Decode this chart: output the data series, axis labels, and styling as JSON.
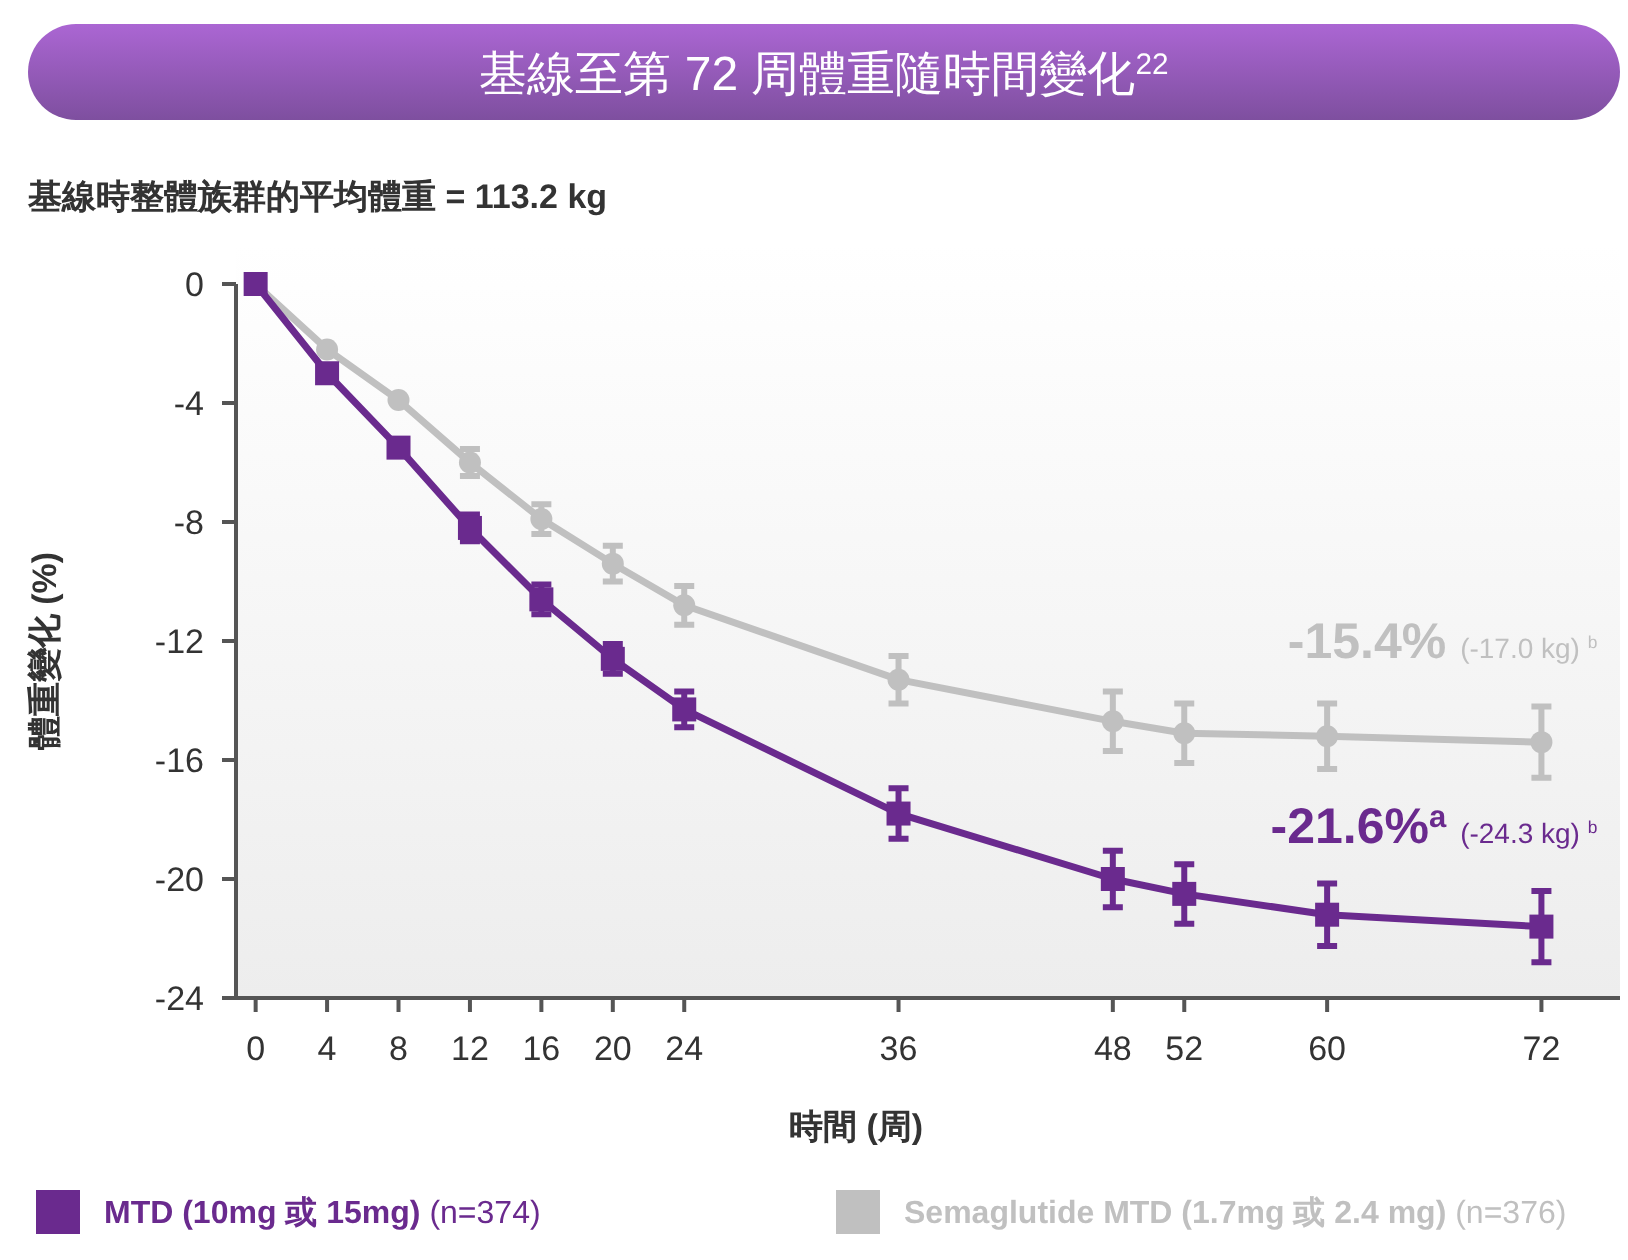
{
  "chart_data": {
    "type": "line",
    "title": "基線至第 72 周體重隨時間變化$^{22}$",
    "subtitle": "基線時整體族群的平均體重 = 113.2 kg",
    "xlabel": "時間 (周)",
    "ylabel": "體重變化 (%)",
    "x": [
      0,
      4,
      8,
      12,
      16,
      20,
      24,
      36,
      48,
      52,
      60,
      72
    ],
    "series": [
      {
        "name": "MTD (10mg 或 15mg) (n=374)",
        "color": "#6a2a8e",
        "marker": "square",
        "values": [
          0,
          -3.0,
          -5.5,
          -8.2,
          -10.6,
          -12.6,
          -14.3,
          -17.8,
          -20.0,
          -20.5,
          -21.2,
          -21.6
        ],
        "errors": [
          null,
          null,
          null,
          0.45,
          0.5,
          0.5,
          0.6,
          0.85,
          0.95,
          1.0,
          1.05,
          1.2
        ]
      },
      {
        "name": "Semaglutide MTD (1.7mg 或 2.4 mg) (n=376)",
        "color": "#c0c0c0",
        "marker": "circle",
        "values": [
          0,
          -2.2,
          -3.9,
          -6.0,
          -7.9,
          -9.4,
          -10.8,
          -13.3,
          -14.7,
          -15.1,
          -15.2,
          -15.4
        ],
        "errors": [
          null,
          null,
          null,
          0.45,
          0.5,
          0.6,
          0.65,
          0.8,
          1.0,
          1.0,
          1.1,
          1.2
        ]
      }
    ],
    "xlim": [
      -1.1,
      76.4
    ],
    "xticks": [
      0,
      4,
      8,
      12,
      16,
      20,
      24,
      36,
      48,
      52,
      60,
      72
    ],
    "ylim": [
      -24,
      0
    ],
    "yticks": [
      0,
      -4,
      -8,
      -12,
      -16,
      -20,
      -24
    ],
    "legend": "bottom",
    "line_style": "solid",
    "annotations": [
      {
        "text": "-21.6%$^{a}$ (-24.3 kg) $^{b}$",
        "x": 72,
        "y": -21.6
      },
      {
        "text": "-15.4% (-17.0 kg) $^{b}$",
        "x": 72,
        "y": -15.4
      }
    ]
  }
}
